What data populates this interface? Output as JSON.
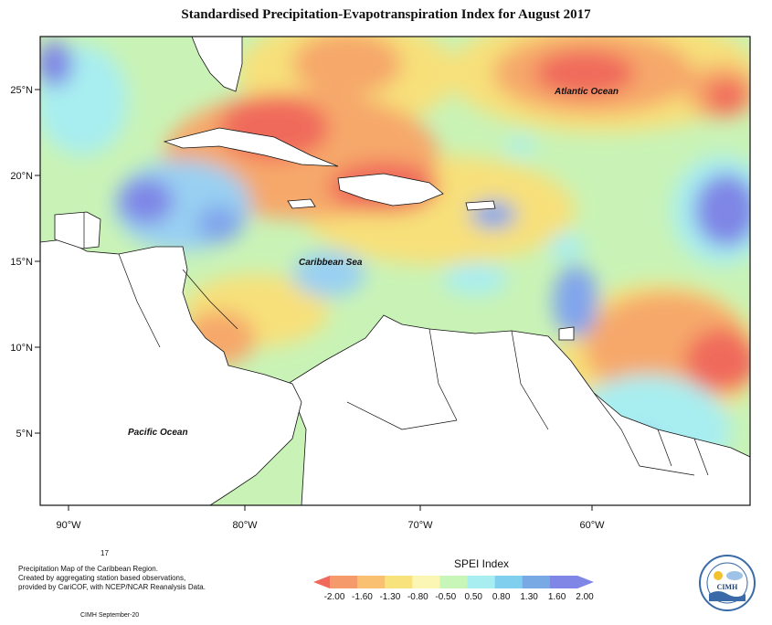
{
  "title": "Standardised Precipitation-Evapotranspiration Index for August 2017",
  "map": {
    "lat_labels": [
      "25°N",
      "20°N",
      "15°N",
      "10°N",
      "5°N"
    ],
    "lon_labels": [
      "90°W",
      "80°W",
      "70°W",
      "60°W"
    ],
    "place_labels": {
      "atlantic": "Atlantic Ocean",
      "caribbean": "Caribbean Sea",
      "pacific": "Pacific Ocean"
    }
  },
  "legend": {
    "title": "SPEI Index",
    "ticks": [
      "-2.00",
      "-1.60",
      "-1.30",
      "-0.80",
      "-0.50",
      "0.50",
      "0.80",
      "1.30",
      "1.60",
      "2.00"
    ],
    "colors": [
      "#f06a5c",
      "#f59a6a",
      "#f8c070",
      "#f8e27c",
      "#fbf6b4",
      "#c8f5b8",
      "#a8eef0",
      "#80cfee",
      "#79a9e4",
      "#7f86e6",
      "#7f86e6"
    ]
  },
  "footer": {
    "number": "17",
    "line1": "Precipitation Map of the Caribbean Region.",
    "line2": "Created by aggregating station based observations,",
    "line3": "provided by CariCOF, with NCEP/NCAR Reanalysis Data.",
    "credit": "CIMH September-20"
  },
  "logo": {
    "text": "CIMH"
  }
}
